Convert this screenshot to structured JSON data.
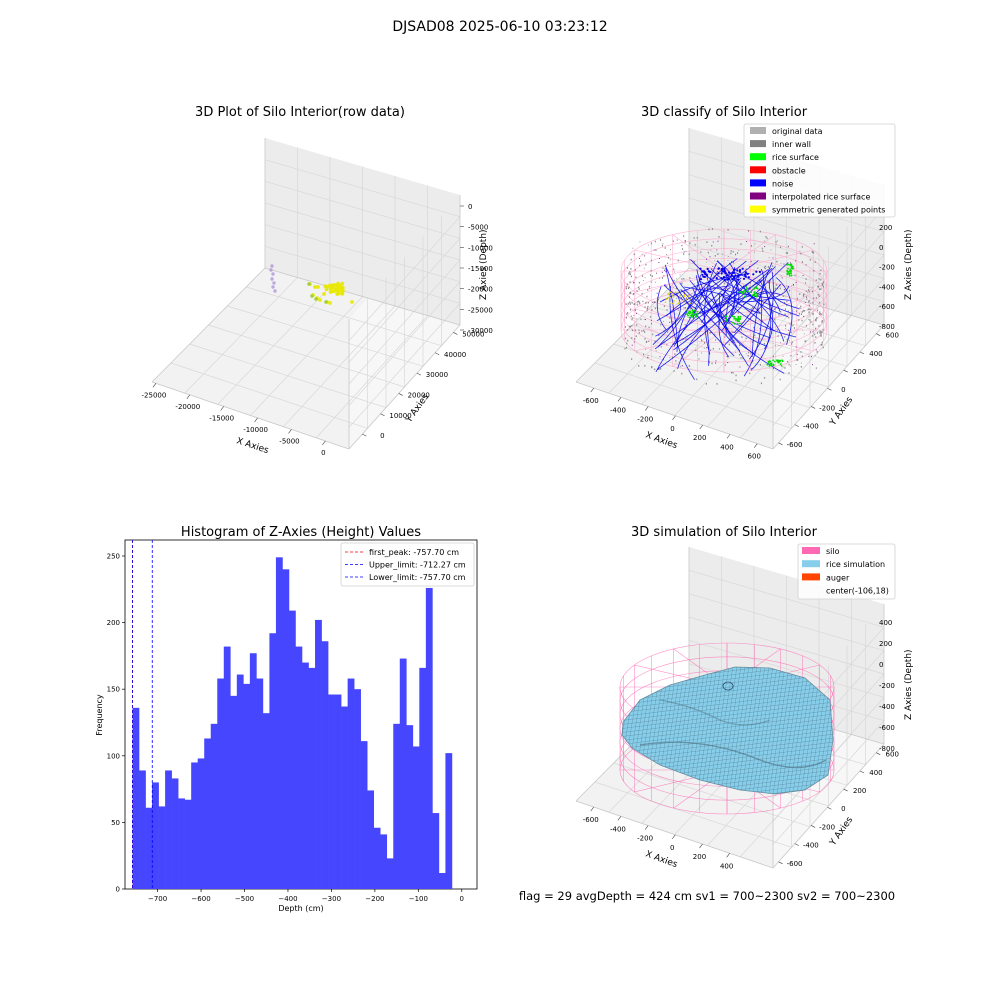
{
  "figure_title": "DJSAD08 2025-06-10 03:23:12",
  "footer_text": "flag = 29  avgDepth = 424 cm  sv1 = 700~2300  sv2 = 700~2300",
  "chart_data": [
    {
      "type": "scatter3d",
      "title": "3D Plot of Silo Interior(row data)",
      "xlabel": "X Axies",
      "ylabel": "Y Axies",
      "zlabel": "Z Axies (Depth)",
      "x_ticks": [
        "-25000",
        "-20000",
        "-15000",
        "-10000",
        "-5000",
        "0"
      ],
      "y_ticks": [
        "0",
        "10000",
        "20000",
        "30000",
        "40000",
        "50000"
      ],
      "z_ticks": [
        "0",
        "-5000",
        "-10000",
        "-15000",
        "-20000",
        "-25000",
        "-30000"
      ],
      "grid": true
    },
    {
      "type": "scatter3d",
      "title": "3D classify of Silo Interior",
      "xlabel": "X Axies",
      "ylabel": "Y Axies",
      "zlabel": "Z Axies (Depth)",
      "x_ticks": [
        "-600",
        "-400",
        "-200",
        "0",
        "200",
        "400",
        "600"
      ],
      "y_ticks": [
        "-600",
        "-400",
        "-200",
        "0",
        "200",
        "400",
        "600"
      ],
      "z_ticks": [
        "200",
        "0",
        "-200",
        "-400",
        "-600",
        "-800"
      ],
      "legend": [
        {
          "name": "original data",
          "color": "#b0b0b0"
        },
        {
          "name": "inner wall",
          "color": "#808080"
        },
        {
          "name": "rice surface",
          "color": "#00ff00"
        },
        {
          "name": "obstacle",
          "color": "#ff0000"
        },
        {
          "name": "noise",
          "color": "#0000ff"
        },
        {
          "name": "interpolated rice surface",
          "color": "#800080"
        },
        {
          "name": "symmetric generated points",
          "color": "#ffff00"
        }
      ],
      "legend_position": "top-right",
      "grid": true
    },
    {
      "type": "bar",
      "title": "Histogram of Z-Axies (Height) Values",
      "xlabel": "Depth (cm)",
      "ylabel": "Frequency",
      "x_ticks": [
        -700,
        -600,
        -500,
        -400,
        -300,
        -200,
        -100,
        0
      ],
      "y_ticks": [
        0,
        50,
        100,
        150,
        200,
        250
      ],
      "xlim": [
        -775,
        35
      ],
      "ylim": [
        0,
        262
      ],
      "bin_start": -757.7,
      "bin_width": 15.0,
      "values": [
        136,
        89,
        61,
        80,
        62,
        89,
        83,
        68,
        67,
        95,
        98,
        113,
        124,
        158,
        182,
        145,
        161,
        154,
        177,
        158,
        132,
        192,
        249,
        240,
        209,
        182,
        170,
        166,
        202,
        186,
        146,
        146,
        137,
        158,
        150,
        111,
        74,
        46,
        41,
        23,
        124,
        173,
        123,
        107,
        166,
        226,
        57,
        12,
        102
      ],
      "bar_color": "#4646ff",
      "lines": [
        {
          "name": "first_peak: -757.70 cm",
          "x": -757.7,
          "color": "#ff0000"
        },
        {
          "name": "Upper_limit: -712.27 cm",
          "x": -712.27,
          "color": "#0000ff"
        },
        {
          "name": "Lower_limit: -757.70 cm",
          "x": -757.7,
          "color": "#0000ff"
        }
      ],
      "legend_position": "top-right"
    },
    {
      "type": "surface3d",
      "title": "3D simulation of Silo Interior",
      "xlabel": "X Axies",
      "ylabel": "Y Axies",
      "zlabel": "Z Axies (Depth)",
      "x_ticks": [
        "-600",
        "-400",
        "-200",
        "0",
        "200",
        "400"
      ],
      "y_ticks": [
        "-600",
        "-400",
        "-200",
        "0",
        "200",
        "400",
        "600"
      ],
      "z_ticks": [
        "400",
        "200",
        "0",
        "-200",
        "-400",
        "-600",
        "-800"
      ],
      "legend": [
        {
          "name": "silo",
          "color": "#ff69b4"
        },
        {
          "name": "rice simulation",
          "color": "#87ceeb"
        },
        {
          "name": "auger",
          "color": "#ff4500"
        },
        {
          "name": "center(-106,18)",
          "color": "none"
        }
      ],
      "legend_position": "top-right",
      "grid": true
    }
  ]
}
